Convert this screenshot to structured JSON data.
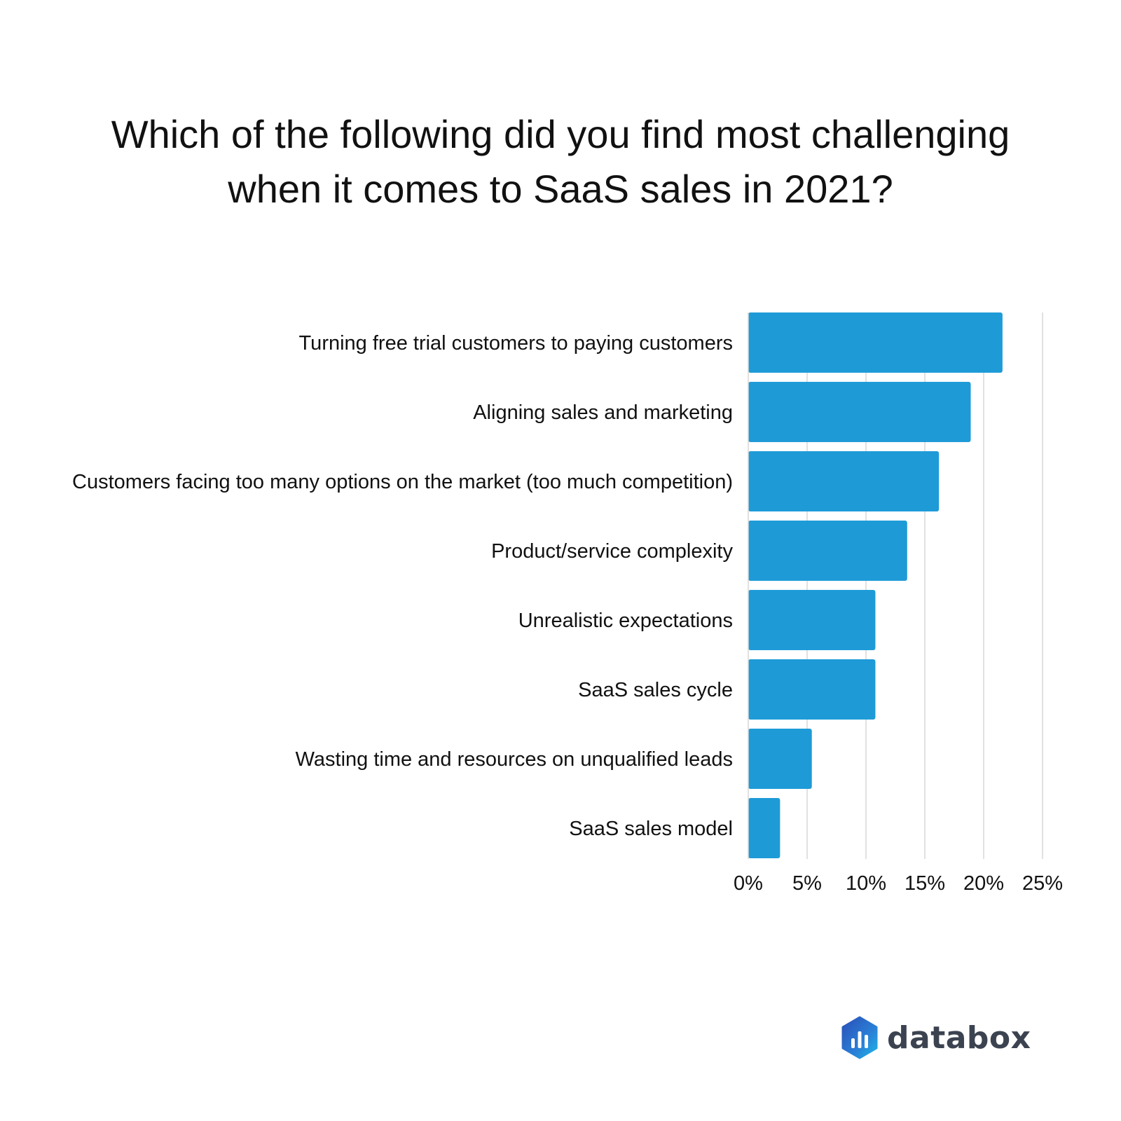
{
  "title_lines": [
    "Which of the following did you find most challenging",
    "when it comes to SaaS sales in 2021?"
  ],
  "brand": {
    "name": "databox",
    "logo_icon": "databox-hexagon-bar-icon"
  },
  "colors": {
    "bar": "#1e9bd7",
    "grid": "#d7d7d7",
    "text": "#111111"
  },
  "chart_data": {
    "type": "bar",
    "orientation": "horizontal",
    "title": "Which of the following did you find most challenging when it comes to SaaS sales in 2021?",
    "categories": [
      "Turning free trial customers to paying customers",
      "Aligning sales and marketing",
      "Customers facing too many options on the market (too much competition)",
      "Product/service complexity",
      "Unrealistic expectations",
      "SaaS sales cycle",
      "Wasting time and resources on unqualified leads",
      "SaaS sales model"
    ],
    "values": [
      21.6,
      18.9,
      16.2,
      13.5,
      10.8,
      10.8,
      5.4,
      2.7
    ],
    "unit": "%",
    "xlim": [
      0,
      25
    ],
    "xticks": [
      0,
      5,
      10,
      15,
      20,
      25
    ],
    "xtick_labels": [
      "0%",
      "5%",
      "10%",
      "15%",
      "20%",
      "25%"
    ],
    "xlabel": "",
    "ylabel": "",
    "grid": true,
    "legend": "none"
  }
}
